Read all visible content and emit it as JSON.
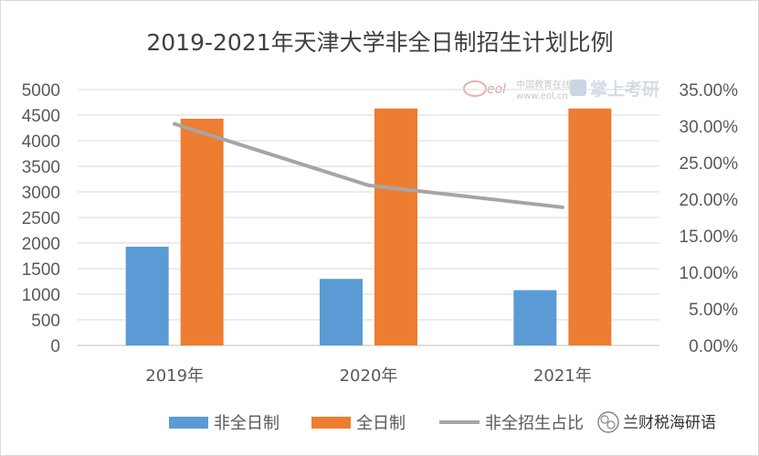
{
  "chart_data": {
    "type": "bar",
    "title": "2019-2021年天津大学非全日制招生计划比例",
    "categories": [
      "2019年",
      "2020年",
      "2021年"
    ],
    "series": [
      {
        "name": "非全日制",
        "kind": "bar",
        "axis": "left",
        "color": "#5b9bd5",
        "values": [
          1930,
          1300,
          1080
        ]
      },
      {
        "name": "全日制",
        "kind": "bar",
        "axis": "left",
        "color": "#ed7d31",
        "values": [
          4430,
          4630,
          4630
        ]
      },
      {
        "name": "非全招生占比",
        "kind": "line",
        "axis": "right",
        "color": "#a5a5a5",
        "values": [
          0.303,
          0.219,
          0.189
        ]
      }
    ],
    "y_left": {
      "ylim": [
        0,
        5000
      ],
      "ticks": [
        "5000",
        "4500",
        "4000",
        "3500",
        "3000",
        "2500",
        "2000",
        "1500",
        "1000",
        "500",
        "0"
      ]
    },
    "y_right": {
      "ylim": [
        0,
        0.35
      ],
      "ticks": [
        "35.00%",
        "30.00%",
        "25.00%",
        "20.00%",
        "15.00%",
        "10.00%",
        "5.00%",
        "0.00%"
      ]
    },
    "grid": true,
    "legend_position": "bottom"
  },
  "watermarks": {
    "eol_logo": "eol",
    "eol_text": "中国教育在线",
    "eol_url": "www.eol.cn",
    "zhangshang": "掌上考研",
    "signature": "兰财税海研语"
  }
}
